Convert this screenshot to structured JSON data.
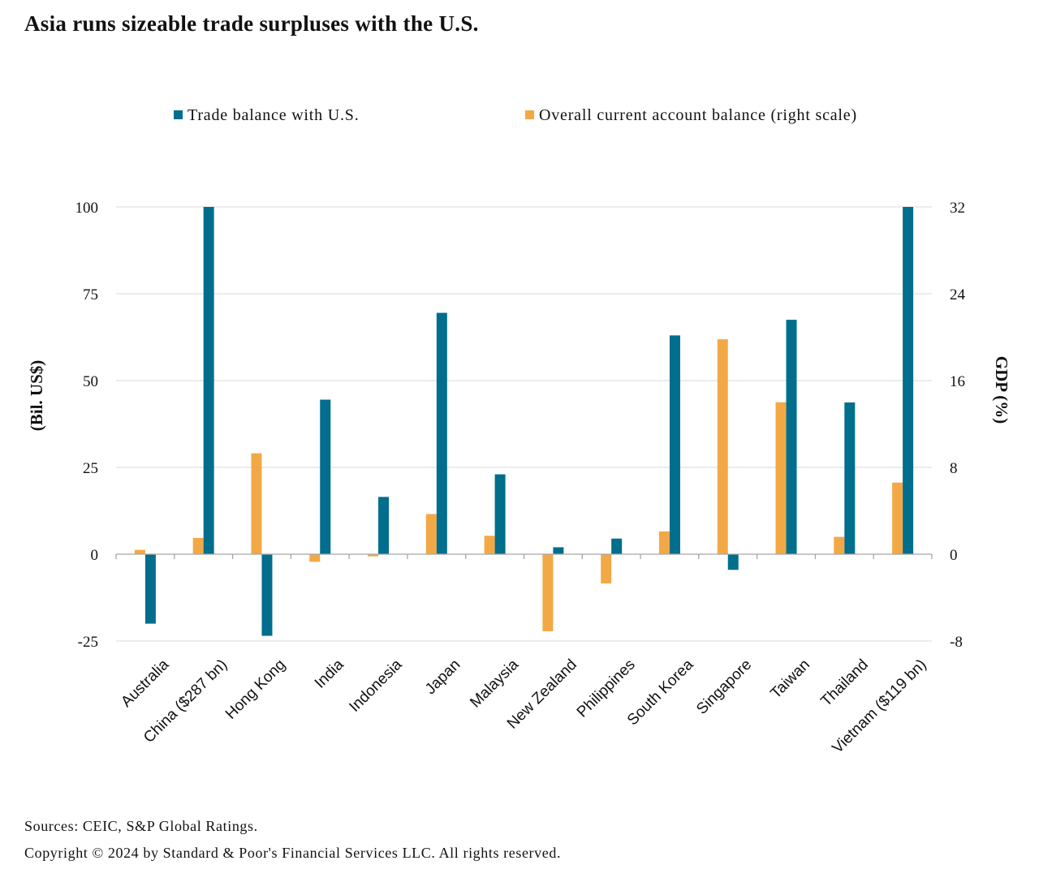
{
  "title": "Asia runs sizeable trade surpluses with the U.S.",
  "footer": {
    "sources": "Sources: CEIC, S&P Global Ratings.",
    "copyright": "Copyright © 2024 by Standard & Poor's Financial Services LLC. All rights reserved."
  },
  "chart_data": {
    "type": "bar",
    "categories": [
      "Australia",
      "China ($287 bn)",
      "Hong Kong",
      "India",
      "Indonesia",
      "Japan",
      "Malaysia",
      "New Zealand",
      "Philippines",
      "South Korea",
      "Singapore",
      "Taiwan",
      "Thailand",
      "Vietnam ($119 bn)"
    ],
    "series": [
      {
        "name": "Trade balance with U.S.",
        "axis": "left",
        "color": "#006E8C",
        "values": [
          -20,
          100,
          -23.5,
          44.5,
          16.5,
          69.5,
          23,
          2,
          4.5,
          63,
          -4.5,
          67.5,
          43.7,
          100
        ]
      },
      {
        "name": "Overall current account balance (right scale)",
        "axis": "right",
        "color": "#F2A945",
        "values": [
          0.4,
          1.5,
          9.3,
          -0.7,
          -0.2,
          3.7,
          1.7,
          -7.1,
          -2.7,
          2.1,
          19.8,
          14,
          1.6,
          6.6
        ]
      }
    ],
    "ylabel": "(Bil. US$)",
    "y2label": "GDP (%)",
    "ylim": [
      -25,
      100
    ],
    "y2lim": [
      -8,
      32
    ],
    "yticks": [
      "100",
      "75",
      "50",
      "25",
      "0",
      "-25"
    ],
    "y2ticks": [
      "32",
      "24",
      "16",
      "8",
      "0",
      "-8"
    ],
    "grid": true,
    "legend_position": "top"
  }
}
